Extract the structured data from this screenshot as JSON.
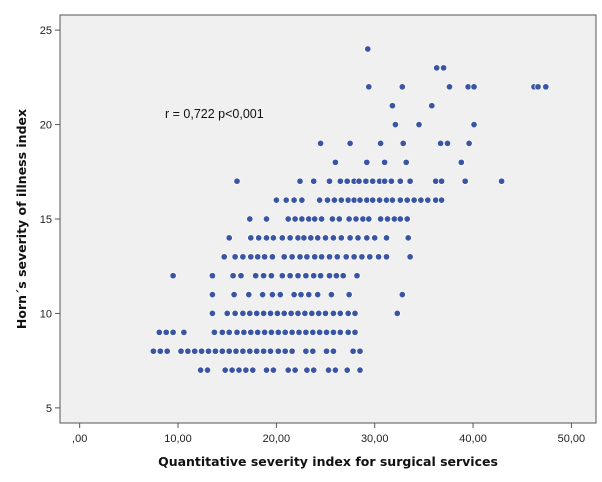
{
  "chart_data": {
    "type": "scatter",
    "title": "",
    "xlabel": "Quantitative severity index for surgical services",
    "ylabel": "Horn´s severity of illness index",
    "xlim": [
      -2,
      52.5
    ],
    "ylim": [
      4.2,
      25.8
    ],
    "x_ticks": [
      0,
      10,
      20,
      30,
      40,
      50
    ],
    "x_tick_labels": [
      ",00",
      "10,00",
      "20,00",
      "30,00",
      "40,00",
      "50,00"
    ],
    "y_ticks": [
      5,
      10,
      15,
      20,
      25
    ],
    "y_tick_labels": [
      "5",
      "10",
      "15",
      "20",
      "25"
    ],
    "grid": false,
    "legend": "none",
    "annotation": "r = 0,722 p<0,001",
    "colors": {
      "marker": "#3a55a4",
      "marker_edge": "#ffffff",
      "plot_bg": "#f0f0f0",
      "axis": "#555555"
    },
    "series": [
      {
        "points": [
          [
            29.3,
            24
          ],
          [
            36.3,
            23
          ],
          [
            37.0,
            23
          ],
          [
            29.4,
            22
          ],
          [
            32.8,
            22
          ],
          [
            37.6,
            22
          ],
          [
            39.5,
            22
          ],
          [
            40.1,
            22
          ],
          [
            46.2,
            22
          ],
          [
            46.6,
            22
          ],
          [
            47.4,
            22
          ],
          [
            31.8,
            21
          ],
          [
            35.8,
            21
          ],
          [
            32.1,
            20
          ],
          [
            34.5,
            20
          ],
          [
            40.1,
            20
          ],
          [
            24.5,
            19
          ],
          [
            27.5,
            19
          ],
          [
            30.6,
            19
          ],
          [
            32.9,
            19
          ],
          [
            36.7,
            19
          ],
          [
            37.4,
            19
          ],
          [
            39.6,
            19
          ],
          [
            26.0,
            18
          ],
          [
            29.2,
            18
          ],
          [
            31.0,
            18
          ],
          [
            33.2,
            18
          ],
          [
            38.8,
            18
          ],
          [
            16.0,
            17
          ],
          [
            22.4,
            17
          ],
          [
            23.8,
            17
          ],
          [
            25.4,
            17
          ],
          [
            26.5,
            17
          ],
          [
            27.2,
            17
          ],
          [
            27.9,
            17
          ],
          [
            28.4,
            17
          ],
          [
            29.1,
            17
          ],
          [
            29.8,
            17
          ],
          [
            30.5,
            17
          ],
          [
            31.0,
            17
          ],
          [
            31.7,
            17
          ],
          [
            32.6,
            17
          ],
          [
            33.6,
            17
          ],
          [
            36.2,
            17
          ],
          [
            36.8,
            17
          ],
          [
            39.2,
            17
          ],
          [
            42.9,
            17
          ],
          [
            20.0,
            16
          ],
          [
            21.0,
            16
          ],
          [
            21.8,
            16
          ],
          [
            22.6,
            16
          ],
          [
            24.4,
            16
          ],
          [
            25.2,
            16
          ],
          [
            25.9,
            16
          ],
          [
            26.6,
            16
          ],
          [
            27.3,
            16
          ],
          [
            27.9,
            16
          ],
          [
            28.5,
            16
          ],
          [
            29.2,
            16
          ],
          [
            29.8,
            16
          ],
          [
            30.5,
            16
          ],
          [
            31.2,
            16
          ],
          [
            31.8,
            16
          ],
          [
            32.6,
            16
          ],
          [
            33.3,
            16
          ],
          [
            34.0,
            16
          ],
          [
            34.7,
            16
          ],
          [
            35.4,
            16
          ],
          [
            36.2,
            16
          ],
          [
            36.8,
            16
          ],
          [
            17.3,
            15
          ],
          [
            19.0,
            15
          ],
          [
            21.2,
            15
          ],
          [
            21.9,
            15
          ],
          [
            22.6,
            15
          ],
          [
            23.3,
            15
          ],
          [
            23.9,
            15
          ],
          [
            24.6,
            15
          ],
          [
            25.7,
            15
          ],
          [
            26.4,
            15
          ],
          [
            27.4,
            15
          ],
          [
            28.1,
            15
          ],
          [
            28.8,
            15
          ],
          [
            29.4,
            15
          ],
          [
            30.6,
            15
          ],
          [
            31.3,
            15
          ],
          [
            32.0,
            15
          ],
          [
            32.6,
            15
          ],
          [
            33.3,
            15
          ],
          [
            15.2,
            14
          ],
          [
            17.4,
            14
          ],
          [
            18.2,
            14
          ],
          [
            19.0,
            14
          ],
          [
            19.7,
            14
          ],
          [
            20.6,
            14
          ],
          [
            21.4,
            14
          ],
          [
            22.2,
            14
          ],
          [
            22.8,
            14
          ],
          [
            23.5,
            14
          ],
          [
            24.2,
            14
          ],
          [
            25.0,
            14
          ],
          [
            25.8,
            14
          ],
          [
            26.6,
            14
          ],
          [
            27.5,
            14
          ],
          [
            28.3,
            14
          ],
          [
            29.2,
            14
          ],
          [
            30.0,
            14
          ],
          [
            31.2,
            14
          ],
          [
            33.4,
            14
          ],
          [
            14.7,
            13
          ],
          [
            15.8,
            13
          ],
          [
            16.6,
            13
          ],
          [
            17.4,
            13
          ],
          [
            18.1,
            13
          ],
          [
            18.8,
            13
          ],
          [
            19.6,
            13
          ],
          [
            20.8,
            13
          ],
          [
            21.6,
            13
          ],
          [
            22.4,
            13
          ],
          [
            23.1,
            13
          ],
          [
            23.9,
            13
          ],
          [
            24.6,
            13
          ],
          [
            25.4,
            13
          ],
          [
            26.2,
            13
          ],
          [
            27.1,
            13
          ],
          [
            27.9,
            13
          ],
          [
            28.7,
            13
          ],
          [
            29.5,
            13
          ],
          [
            30.4,
            13
          ],
          [
            31.2,
            13
          ],
          [
            33.6,
            13
          ],
          [
            9.5,
            12
          ],
          [
            13.5,
            12
          ],
          [
            15.6,
            12
          ],
          [
            16.4,
            12
          ],
          [
            17.9,
            12
          ],
          [
            18.7,
            12
          ],
          [
            19.5,
            12
          ],
          [
            20.6,
            12
          ],
          [
            21.4,
            12
          ],
          [
            22.2,
            12
          ],
          [
            23.0,
            12
          ],
          [
            23.8,
            12
          ],
          [
            24.5,
            12
          ],
          [
            25.4,
            12
          ],
          [
            26.1,
            12
          ],
          [
            26.8,
            12
          ],
          [
            28.2,
            12
          ],
          [
            13.5,
            11
          ],
          [
            15.7,
            11
          ],
          [
            17.2,
            11
          ],
          [
            18.6,
            11
          ],
          [
            19.6,
            11
          ],
          [
            20.4,
            11
          ],
          [
            21.8,
            11
          ],
          [
            22.5,
            11
          ],
          [
            23.3,
            11
          ],
          [
            24.2,
            11
          ],
          [
            25.6,
            11
          ],
          [
            27.4,
            11
          ],
          [
            32.8,
            11
          ],
          [
            13.5,
            10
          ],
          [
            15.0,
            10
          ],
          [
            15.8,
            10
          ],
          [
            16.6,
            10
          ],
          [
            17.3,
            10
          ],
          [
            18.0,
            10
          ],
          [
            18.7,
            10
          ],
          [
            19.4,
            10
          ],
          [
            20.1,
            10
          ],
          [
            20.8,
            10
          ],
          [
            21.5,
            10
          ],
          [
            22.2,
            10
          ],
          [
            22.9,
            10
          ],
          [
            23.6,
            10
          ],
          [
            24.3,
            10
          ],
          [
            25.0,
            10
          ],
          [
            25.8,
            10
          ],
          [
            26.5,
            10
          ],
          [
            27.3,
            10
          ],
          [
            28.0,
            10
          ],
          [
            32.3,
            10
          ],
          [
            13.7,
            9
          ],
          [
            14.5,
            9
          ],
          [
            15.2,
            9
          ],
          [
            16.0,
            9
          ],
          [
            16.7,
            9
          ],
          [
            17.4,
            9
          ],
          [
            18.1,
            9
          ],
          [
            18.8,
            9
          ],
          [
            19.5,
            9
          ],
          [
            20.2,
            9
          ],
          [
            20.9,
            9
          ],
          [
            21.6,
            9
          ],
          [
            22.3,
            9
          ],
          [
            23.0,
            9
          ],
          [
            23.7,
            9
          ],
          [
            24.4,
            9
          ],
          [
            25.1,
            9
          ],
          [
            25.8,
            9
          ],
          [
            26.5,
            9
          ],
          [
            27.3,
            9
          ],
          [
            28.0,
            9
          ],
          [
            8.1,
            9
          ],
          [
            8.8,
            9
          ],
          [
            9.5,
            9
          ],
          [
            10.6,
            9
          ],
          [
            7.5,
            8
          ],
          [
            8.2,
            8
          ],
          [
            8.9,
            8
          ],
          [
            10.3,
            8
          ],
          [
            11.0,
            8
          ],
          [
            11.7,
            8
          ],
          [
            12.4,
            8
          ],
          [
            13.1,
            8
          ],
          [
            13.8,
            8
          ],
          [
            14.5,
            8
          ],
          [
            15.2,
            8
          ],
          [
            15.9,
            8
          ],
          [
            16.6,
            8
          ],
          [
            17.3,
            8
          ],
          [
            18.0,
            8
          ],
          [
            18.7,
            8
          ],
          [
            19.4,
            8
          ],
          [
            20.2,
            8
          ],
          [
            20.9,
            8
          ],
          [
            21.6,
            8
          ],
          [
            23.0,
            8
          ],
          [
            23.7,
            8
          ],
          [
            25.1,
            8
          ],
          [
            25.8,
            8
          ],
          [
            27.8,
            8
          ],
          [
            28.5,
            8
          ],
          [
            12.3,
            7
          ],
          [
            13.0,
            7
          ],
          [
            14.8,
            7
          ],
          [
            15.5,
            7
          ],
          [
            16.2,
            7
          ],
          [
            16.9,
            7
          ],
          [
            17.6,
            7
          ],
          [
            19.0,
            7
          ],
          [
            19.7,
            7
          ],
          [
            21.2,
            7
          ],
          [
            21.9,
            7
          ],
          [
            23.1,
            7
          ],
          [
            23.8,
            7
          ],
          [
            25.3,
            7
          ],
          [
            26.0,
            7
          ],
          [
            27.2,
            7
          ],
          [
            28.5,
            7
          ]
        ]
      }
    ]
  }
}
